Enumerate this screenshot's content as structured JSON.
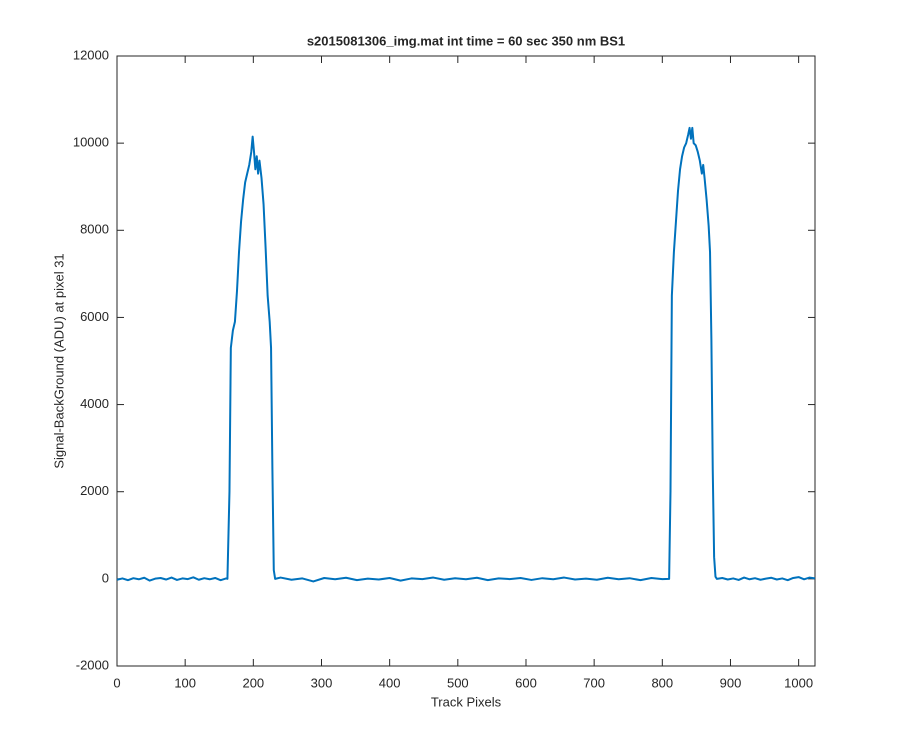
{
  "chart_data": {
    "type": "line",
    "title": "s2015081306_img.mat int time = 60 sec  350 nm BS1",
    "x_label": "Track Pixels",
    "y_label": "Signal-BackGround (ADU) at pixel 31",
    "xlim": [
      0,
      1024
    ],
    "ylim": [
      -2000,
      12000
    ],
    "xticks": [
      0,
      100,
      200,
      300,
      400,
      500,
      600,
      700,
      800,
      900,
      1000
    ],
    "yticks": [
      -2000,
      0,
      2000,
      4000,
      6000,
      8000,
      10000,
      12000
    ],
    "x": [
      0,
      8,
      16,
      24,
      32,
      40,
      48,
      56,
      64,
      72,
      80,
      88,
      96,
      104,
      112,
      120,
      128,
      136,
      144,
      152,
      160,
      162,
      165,
      167,
      170,
      173,
      176,
      179,
      182,
      185,
      188,
      191,
      194,
      197,
      199,
      201,
      203,
      205,
      207,
      209,
      212,
      215,
      218,
      221,
      224,
      226,
      228,
      230,
      232,
      240,
      256,
      272,
      288,
      304,
      320,
      336,
      352,
      368,
      384,
      400,
      416,
      432,
      448,
      464,
      480,
      496,
      512,
      528,
      544,
      560,
      576,
      592,
      608,
      624,
      640,
      656,
      672,
      688,
      704,
      720,
      736,
      752,
      768,
      784,
      800,
      810,
      812,
      814,
      817,
      820,
      823,
      826,
      829,
      832,
      835,
      838,
      840,
      842,
      844,
      846,
      849,
      852,
      855,
      858,
      860,
      862,
      865,
      868,
      870,
      872,
      874,
      876,
      878,
      880,
      888,
      896,
      904,
      912,
      920,
      928,
      936,
      944,
      952,
      960,
      968,
      976,
      984,
      992,
      1000,
      1008,
      1016,
      1024
    ],
    "series": [
      {
        "name": "signal",
        "color": "#0072bd",
        "values": [
          -20,
          10,
          -30,
          15,
          -10,
          25,
          -40,
          5,
          20,
          -15,
          30,
          -25,
          10,
          -5,
          35,
          -20,
          15,
          -10,
          20,
          -30,
          10,
          0,
          2000,
          5300,
          5700,
          5900,
          6600,
          7500,
          8200,
          8700,
          9100,
          9300,
          9500,
          9800,
          10150,
          9800,
          9400,
          9700,
          9300,
          9600,
          9200,
          8600,
          7600,
          6500,
          5900,
          5300,
          2500,
          200,
          0,
          30,
          -20,
          10,
          -60,
          20,
          -10,
          25,
          -30,
          5,
          -15,
          20,
          -40,
          10,
          -5,
          30,
          -20,
          15,
          -10,
          25,
          -30,
          10,
          -5,
          20,
          -25,
          15,
          -10,
          30,
          -15,
          5,
          -20,
          25,
          -10,
          15,
          -30,
          20,
          -5,
          0,
          2000,
          6500,
          7500,
          8200,
          8900,
          9400,
          9700,
          9900,
          10000,
          10200,
          10350,
          10100,
          10350,
          10000,
          9950,
          9800,
          9600,
          9300,
          9500,
          9200,
          8700,
          8100,
          7500,
          5500,
          2500,
          500,
          50,
          0,
          20,
          -15,
          10,
          -25,
          30,
          -10,
          15,
          -20,
          5,
          25,
          -15,
          10,
          -30,
          20,
          40,
          -10,
          30,
          10
        ]
      }
    ]
  }
}
